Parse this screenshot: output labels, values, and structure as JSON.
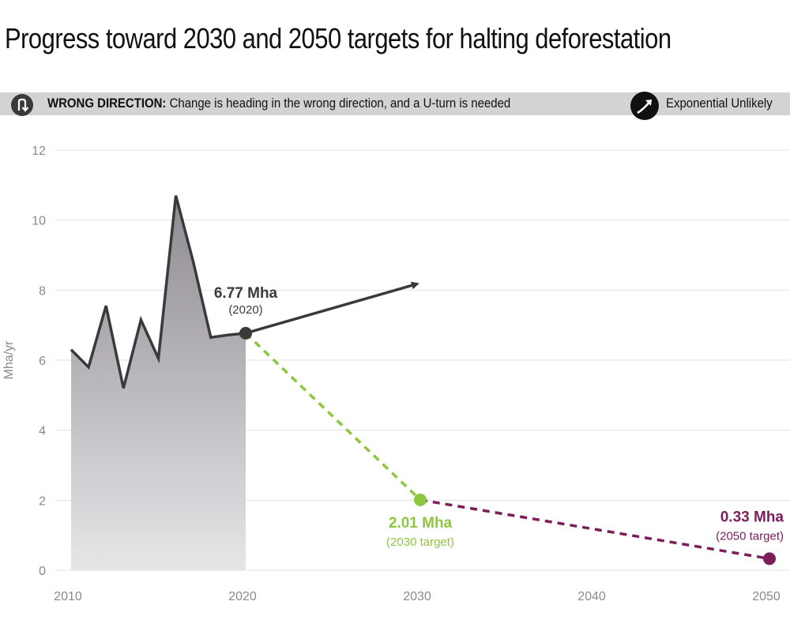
{
  "title": "Progress toward 2030 and 2050 targets for halting deforestation",
  "banner": {
    "status": "WRONG DIRECTION:",
    "description": "Change is heading in the wrong direction, and a U-turn is needed",
    "icon": "u-turn-icon",
    "background": "#d3d3d6"
  },
  "legend": {
    "label": "Exponential Unlikely",
    "icon": "exponential-arrow-icon"
  },
  "chart_data": {
    "type": "area",
    "title": "Progress toward 2030 and 2050 targets for halting deforestation",
    "xlabel": "",
    "ylabel": "Mha/yr",
    "xlim": [
      2010,
      2050
    ],
    "ylim": [
      0,
      12
    ],
    "x_ticks": [
      2010,
      2020,
      2030,
      2040,
      2050
    ],
    "y_ticks": [
      0,
      2,
      4,
      6,
      8,
      10,
      12
    ],
    "grid": true,
    "series": [
      {
        "name": "historical",
        "color": "#3a393c",
        "x": [
          2010,
          2011,
          2012,
          2013,
          2014,
          2015,
          2016,
          2017,
          2018,
          2019,
          2020
        ],
        "y": [
          6.3,
          5.8,
          7.55,
          5.2,
          7.15,
          6.05,
          10.7,
          8.8,
          6.65,
          6.72,
          6.77
        ]
      },
      {
        "name": "current trend projection",
        "color": "#3a393c",
        "x": [
          2020,
          2030
        ],
        "y": [
          6.77,
          8.2
        ]
      },
      {
        "name": "2030 target path",
        "color": "#8dc63f",
        "x": [
          2020,
          2030
        ],
        "y": [
          6.77,
          2.01
        ]
      },
      {
        "name": "2050 target path",
        "color": "#7b1e5a",
        "x": [
          2030,
          2050
        ],
        "y": [
          2.01,
          0.33
        ]
      }
    ],
    "annotations": [
      {
        "value": "6.77 Mha",
        "sub": "(2020)",
        "x": 2020,
        "y": 6.77,
        "color": "#3a393c"
      },
      {
        "value": "2.01 Mha",
        "sub": "(2030 target)",
        "x": 2030,
        "y": 2.01,
        "color": "#8dc63f"
      },
      {
        "value": "0.33 Mha",
        "sub": "(2050 target)",
        "x": 2050,
        "y": 0.33,
        "color": "#7b1e5a"
      }
    ]
  }
}
